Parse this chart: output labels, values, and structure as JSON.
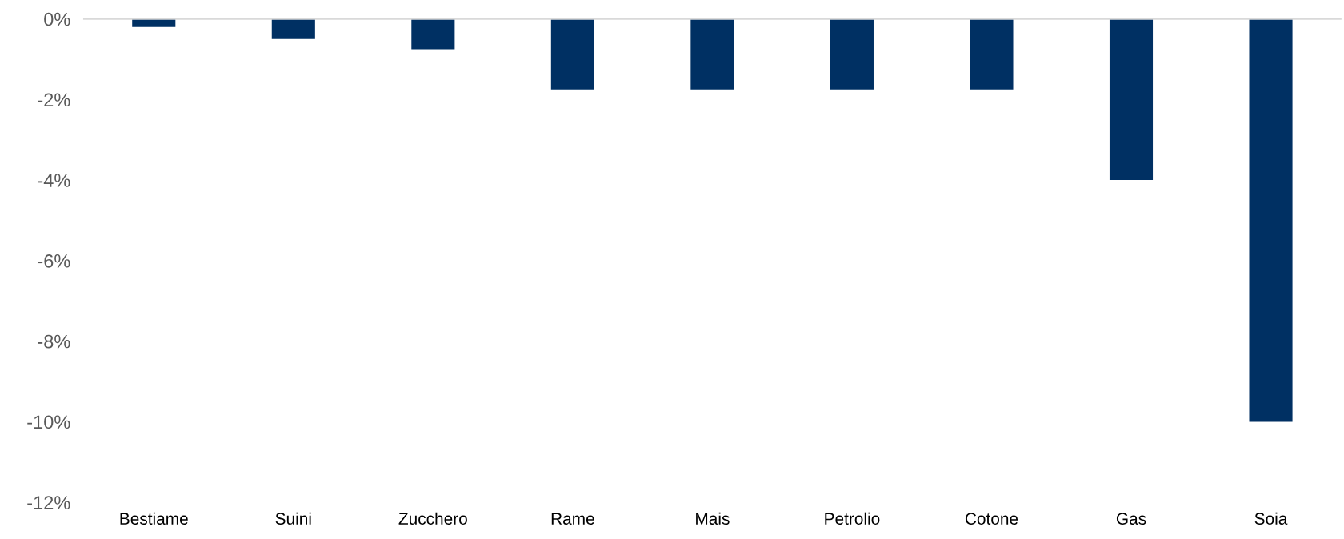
{
  "chart_data": {
    "type": "bar",
    "categories": [
      "Bestiame",
      "Suini",
      "Zucchero",
      "Rame",
      "Mais",
      "Petrolio",
      "Cotone",
      "Gas",
      "Soia"
    ],
    "values": [
      -0.2,
      -0.5,
      -0.75,
      -1.75,
      -1.75,
      -1.75,
      -1.75,
      -4,
      -10
    ],
    "color": "#003063",
    "ylim": [
      -12,
      0
    ],
    "yticks": [
      {
        "value": -12,
        "label": "-12%"
      },
      {
        "value": -10,
        "label": "-10%"
      },
      {
        "value": -8,
        "label": "-8%"
      },
      {
        "value": -6,
        "label": "-6%"
      },
      {
        "value": -4,
        "label": "-4%"
      },
      {
        "value": -2,
        "label": "-2%"
      },
      {
        "value": 0,
        "label": "0%"
      }
    ],
    "grid": false
  }
}
